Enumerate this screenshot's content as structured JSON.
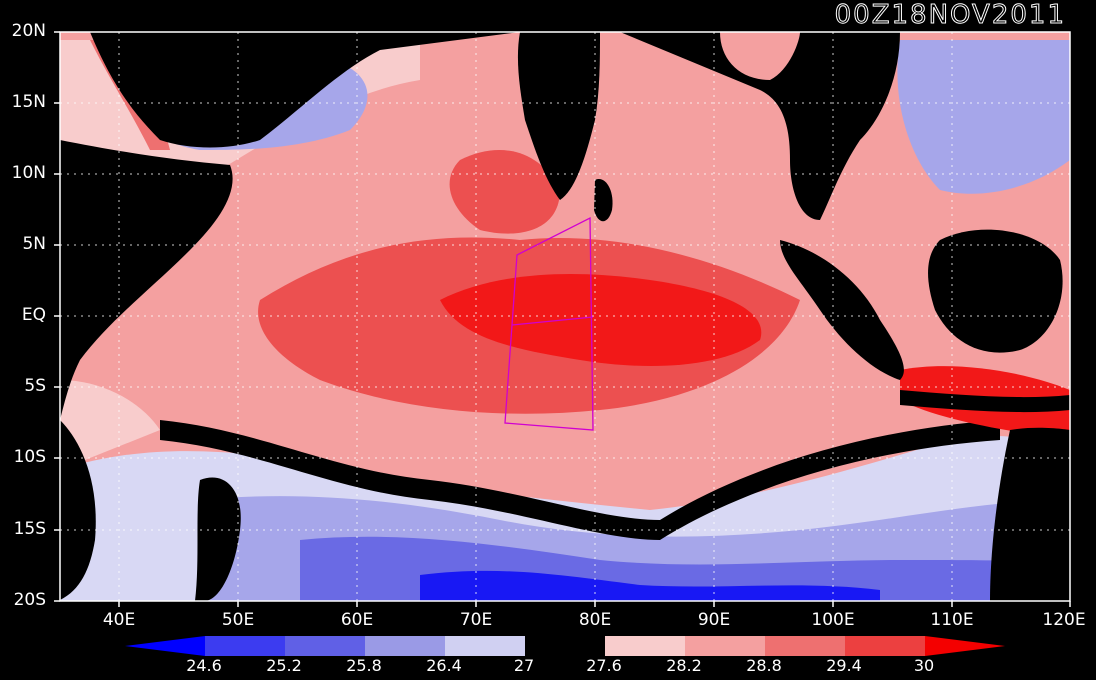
{
  "timestamp": "00Z18NOV2011",
  "map": {
    "lat_labels": [
      "20N",
      "15N",
      "10N",
      "5N",
      "EQ",
      "5S",
      "10S",
      "15S",
      "20S"
    ],
    "lon_labels": [
      "40E",
      "50E",
      "60E",
      "70E",
      "80E",
      "90E",
      "100E",
      "110E",
      "120E"
    ],
    "lat_range": [
      -20,
      20
    ],
    "lon_range": [
      35,
      120
    ],
    "grid": true
  },
  "colorbar": {
    "labels": [
      "24.6",
      "25.2",
      "25.8",
      "26.4",
      "27",
      "27.6",
      "28.2",
      "28.8",
      "29.4",
      "30"
    ],
    "colors": [
      "#0000ff",
      "#3c3cf0",
      "#6060e6",
      "#9a9ae6",
      "#d0d0f2",
      "#000000",
      "#f8cccc",
      "#f4a0a0",
      "#ee7070",
      "#ec4040",
      "#f40000"
    ]
  },
  "colors": {
    "land": "#000000",
    "frame": "#ffffff",
    "box": "#d000d0"
  }
}
